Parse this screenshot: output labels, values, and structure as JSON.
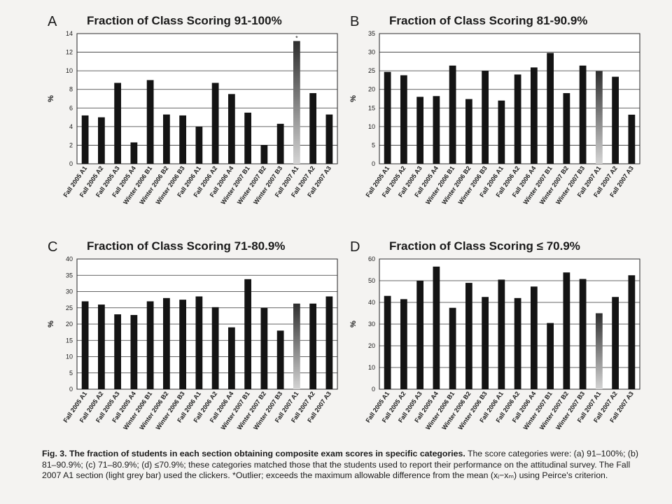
{
  "figure": {
    "caption_lead": "Fig. 3. The fraction of students in each section obtaining composite exam scores in specific categories.",
    "caption_body": "The score categories were: (a) 91–100%; (b) 81–90.9%; (c) 71–80.9%; (d) ≤70.9%; these categories matched those that the students used to report their performance on the attitudinal survey. The Fall 2007 A1 section (light grey bar) used the clickers. *Outlier; exceeds the maximum allowable difference from the mean (xᵢ−xₘ) using Peirce's criterion."
  },
  "colors": {
    "bar": "#141414",
    "gradient_top": "#2e2e2e",
    "gradient_bottom": "#d4d4d4",
    "plot_bg": "#ffffff"
  },
  "chart_data": [
    {
      "type": "bar",
      "panel": "A",
      "title": "Fraction of Class Scoring 91-100%",
      "ylabel": "%",
      "ylim": [
        0,
        14
      ],
      "yticks": [
        0,
        2,
        4,
        6,
        8,
        10,
        12,
        14
      ],
      "categories": [
        "Fall 2005 A1",
        "Fall 2005 A2",
        "Fall 2005 A3",
        "Fall 2005 A4",
        "Winter 2006 B1",
        "Winter 2006 B2",
        "Winter 2006 B3",
        "Fall 2006 A1",
        "Fall 2006 A2",
        "Fall 2006 A4",
        "Winter 2007 B1",
        "Winter 2007 B2",
        "Winter 2007 B3",
        "Fall 2007 A1",
        "Fall 2007 A2",
        "Fall 2007 A3"
      ],
      "values": [
        5.2,
        5.0,
        8.7,
        2.3,
        9.0,
        5.3,
        5.2,
        4.0,
        8.7,
        7.5,
        5.5,
        2.0,
        4.3,
        13.2,
        7.6,
        5.3
      ],
      "highlight_index": 13,
      "annotation": "*"
    },
    {
      "type": "bar",
      "panel": "B",
      "title": "Fraction of Class Scoring 81-90.9%",
      "ylabel": "%",
      "ylim": [
        0,
        35
      ],
      "yticks": [
        0,
        5,
        10,
        15,
        20,
        25,
        30,
        35
      ],
      "categories": [
        "Fall 2005 A1",
        "Fall 2005 A2",
        "Fall 2005 A3",
        "Fall 2005 A4",
        "Winter 2006 B1",
        "Winter 2006 B2",
        "Winter 2006 B3",
        "Fall 2006 A1",
        "Fall 2006 A2",
        "Fall 2006 A4",
        "Winter 2007 B1",
        "Winter 2007 B2",
        "Winter 2007 B3",
        "Fall 2007 A1",
        "Fall 2007 A2",
        "Fall 2007 A3"
      ],
      "values": [
        24.7,
        23.8,
        18.0,
        18.2,
        26.4,
        17.4,
        25.0,
        17.0,
        24.0,
        25.9,
        29.8,
        19.0,
        26.4,
        24.9,
        23.4,
        13.2
      ],
      "highlight_index": 13
    },
    {
      "type": "bar",
      "panel": "C",
      "title": "Fraction of Class Scoring 71-80.9%",
      "ylabel": "%",
      "ylim": [
        0,
        40
      ],
      "yticks": [
        0,
        5,
        10,
        15,
        20,
        25,
        30,
        35,
        40
      ],
      "categories": [
        "Fall 2005 A1",
        "Fall 2005 A2",
        "Fall 2005 A3",
        "Fall 2005 A4",
        "Winter 2006 B1",
        "Winter 2006 B2",
        "Winter 2006 B3",
        "Fall 2006 A1",
        "Fall 2006 A2",
        "Fall 2006 A4",
        "Winter 2007 B1",
        "Winter 2007 B2",
        "Winter 2007 B3",
        "Fall 2007 A1",
        "Fall 2007 A2",
        "Fall 2007 A3"
      ],
      "values": [
        27.0,
        26.0,
        23.0,
        22.8,
        27.0,
        28.0,
        27.5,
        28.5,
        25.2,
        19.0,
        33.8,
        25.0,
        18.0,
        26.3,
        26.3,
        28.5
      ],
      "highlight_index": 13
    },
    {
      "type": "bar",
      "panel": "D",
      "title": "Fraction of Class Scoring ≤ 70.9%",
      "ylabel": "%",
      "ylim": [
        0,
        60
      ],
      "yticks": [
        0,
        10,
        20,
        30,
        40,
        50,
        60
      ],
      "categories": [
        "Fall 2005 A1",
        "Fall 2005 A2",
        "Fall 2005 A3",
        "Fall 2005 A4",
        "Winter 2006 B1",
        "Winter 2006 B2",
        "Winter 2006 B3",
        "Fall 2006 A1",
        "Fall 2006 A2",
        "Fall 2006 A4",
        "Winter 2007 B1",
        "Winter 2007 B2",
        "Winter 2007 B3",
        "Fall 2007 A1",
        "Fall 2007 A2",
        "Fall 2007 A3"
      ],
      "values": [
        43.0,
        41.5,
        50.0,
        56.5,
        37.5,
        49.0,
        42.5,
        50.5,
        42.0,
        47.3,
        30.5,
        53.8,
        50.8,
        35.0,
        42.5,
        52.5
      ],
      "highlight_index": 13
    }
  ]
}
